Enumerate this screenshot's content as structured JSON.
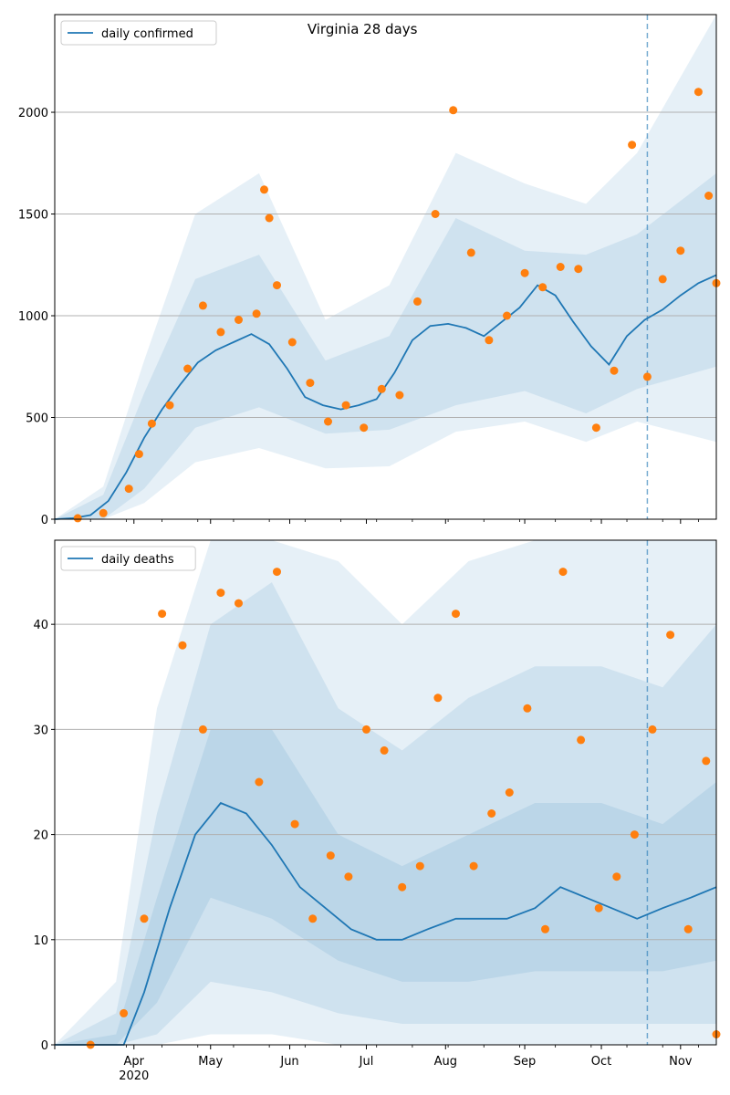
{
  "colors": {
    "line": "#1f77b4",
    "points": "#ff7f0e",
    "band": "#1f77b4",
    "grid": "#b0b0b0"
  },
  "chart_data": [
    {
      "type": "line",
      "title": "Virginia 28 days",
      "legend": {
        "label": "daily confirmed",
        "placement": "top-left"
      },
      "ylim": [
        0,
        2480
      ],
      "yticks": [
        0,
        500,
        1000,
        1500,
        2000
      ],
      "grid": "horizontal",
      "x_range": [
        "2020-03-01",
        "2020-11-15"
      ],
      "vline_date": "2020-10-19",
      "series": [
        {
          "kind": "line",
          "x": [
            "2020-03-01",
            "2020-03-08",
            "2020-03-15",
            "2020-03-22",
            "2020-03-29",
            "2020-04-05",
            "2020-04-12",
            "2020-04-19",
            "2020-04-26",
            "2020-05-03",
            "2020-05-10",
            "2020-05-17",
            "2020-05-24",
            "2020-05-31",
            "2020-06-07",
            "2020-06-14",
            "2020-06-21",
            "2020-06-28",
            "2020-07-05",
            "2020-07-12",
            "2020-07-19",
            "2020-07-26",
            "2020-08-02",
            "2020-08-09",
            "2020-08-16",
            "2020-08-23",
            "2020-08-30",
            "2020-09-06",
            "2020-09-13",
            "2020-09-20",
            "2020-09-27",
            "2020-10-04",
            "2020-10-11",
            "2020-10-18",
            "2020-10-25",
            "2020-11-01",
            "2020-11-08",
            "2020-11-15"
          ],
          "y": [
            0,
            5,
            20,
            90,
            230,
            400,
            540,
            660,
            770,
            830,
            870,
            910,
            860,
            740,
            600,
            560,
            540,
            560,
            590,
            720,
            880,
            950,
            960,
            940,
            900,
            970,
            1040,
            1150,
            1100,
            970,
            850,
            760,
            900,
            980,
            1030,
            1100,
            1160,
            1200
          ]
        },
        {
          "kind": "scatter",
          "x": [
            "2020-03-10",
            "2020-03-20",
            "2020-03-30",
            "2020-04-03",
            "2020-04-08",
            "2020-04-15",
            "2020-04-22",
            "2020-04-28",
            "2020-05-05",
            "2020-05-12",
            "2020-05-19",
            "2020-05-22",
            "2020-05-24",
            "2020-05-27",
            "2020-06-02",
            "2020-06-09",
            "2020-06-16",
            "2020-06-23",
            "2020-06-30",
            "2020-07-07",
            "2020-07-14",
            "2020-07-21",
            "2020-07-28",
            "2020-08-04",
            "2020-08-11",
            "2020-08-18",
            "2020-08-25",
            "2020-09-01",
            "2020-09-08",
            "2020-09-15",
            "2020-09-22",
            "2020-09-29",
            "2020-10-06",
            "2020-10-13",
            "2020-10-19",
            "2020-10-25",
            "2020-11-01",
            "2020-11-08",
            "2020-11-12",
            "2020-11-15"
          ],
          "y": [
            5,
            30,
            150,
            320,
            470,
            560,
            740,
            1050,
            920,
            980,
            1010,
            1620,
            1480,
            1150,
            870,
            670,
            480,
            560,
            450,
            640,
            610,
            1070,
            1500,
            2010,
            1310,
            880,
            1000,
            1210,
            1140,
            1240,
            1230,
            450,
            730,
            1840,
            700,
            1180,
            1320,
            2100,
            1590,
            1160
          ]
        }
      ],
      "bands": [
        {
          "x": [
            "2020-03-01",
            "2020-03-20",
            "2020-04-05",
            "2020-04-25",
            "2020-05-20",
            "2020-06-15",
            "2020-07-10",
            "2020-08-05",
            "2020-09-01",
            "2020-09-25",
            "2020-10-15",
            "2020-11-15"
          ],
          "low": [
            0,
            0,
            150,
            450,
            550,
            420,
            440,
            560,
            630,
            520,
            640,
            750
          ],
          "high": [
            0,
            120,
            620,
            1180,
            1300,
            780,
            900,
            1480,
            1320,
            1300,
            1400,
            1700
          ]
        },
        {
          "x": [
            "2020-03-01",
            "2020-03-20",
            "2020-04-05",
            "2020-04-25",
            "2020-05-20",
            "2020-06-15",
            "2020-07-10",
            "2020-08-05",
            "2020-09-01",
            "2020-09-25",
            "2020-10-15",
            "2020-11-15"
          ],
          "low": [
            0,
            0,
            80,
            280,
            350,
            250,
            260,
            430,
            480,
            380,
            480,
            380
          ],
          "high": [
            0,
            160,
            780,
            1500,
            1700,
            980,
            1150,
            1800,
            1650,
            1550,
            1800,
            2480
          ]
        }
      ]
    },
    {
      "type": "line",
      "title": "",
      "legend": {
        "label": "daily deaths",
        "placement": "top-left"
      },
      "ylim": [
        0,
        48
      ],
      "yticks": [
        0,
        10,
        20,
        30,
        40
      ],
      "grid": "horizontal",
      "x_range": [
        "2020-03-01",
        "2020-11-15"
      ],
      "vline_date": "2020-10-19",
      "xticks": [
        {
          "date": "2020-04-01",
          "label": "Apr",
          "sub": "2020"
        },
        {
          "date": "2020-05-01",
          "label": "May",
          "sub": ""
        },
        {
          "date": "2020-06-01",
          "label": "Jun",
          "sub": ""
        },
        {
          "date": "2020-07-01",
          "label": "Jul",
          "sub": ""
        },
        {
          "date": "2020-08-01",
          "label": "Aug",
          "sub": ""
        },
        {
          "date": "2020-09-01",
          "label": "Sep",
          "sub": ""
        },
        {
          "date": "2020-10-01",
          "label": "Oct",
          "sub": ""
        },
        {
          "date": "2020-11-01",
          "label": "Nov",
          "sub": ""
        }
      ],
      "series": [
        {
          "kind": "line",
          "x": [
            "2020-03-01",
            "2020-03-20",
            "2020-03-28",
            "2020-04-05",
            "2020-04-15",
            "2020-04-25",
            "2020-05-05",
            "2020-05-15",
            "2020-05-25",
            "2020-06-05",
            "2020-06-15",
            "2020-06-25",
            "2020-07-05",
            "2020-07-15",
            "2020-07-25",
            "2020-08-05",
            "2020-08-15",
            "2020-08-25",
            "2020-09-05",
            "2020-09-15",
            "2020-09-25",
            "2020-10-05",
            "2020-10-15",
            "2020-10-25",
            "2020-11-05",
            "2020-11-15"
          ],
          "y": [
            0,
            0,
            0,
            5,
            13,
            20,
            23,
            22,
            19,
            15,
            13,
            11,
            10,
            10,
            11,
            12,
            12,
            12,
            13,
            15,
            14,
            13,
            12,
            13,
            14,
            15
          ]
        },
        {
          "kind": "scatter",
          "x": [
            "2020-03-15",
            "2020-03-28",
            "2020-04-05",
            "2020-04-12",
            "2020-04-20",
            "2020-04-28",
            "2020-05-05",
            "2020-05-12",
            "2020-05-20",
            "2020-05-27",
            "2020-06-03",
            "2020-06-10",
            "2020-06-17",
            "2020-06-24",
            "2020-07-01",
            "2020-07-08",
            "2020-07-15",
            "2020-07-22",
            "2020-07-29",
            "2020-08-05",
            "2020-08-12",
            "2020-08-19",
            "2020-08-26",
            "2020-09-02",
            "2020-09-09",
            "2020-09-16",
            "2020-09-23",
            "2020-09-30",
            "2020-10-07",
            "2020-10-14",
            "2020-10-21",
            "2020-10-28",
            "2020-11-04",
            "2020-11-11",
            "2020-11-15"
          ],
          "y": [
            0,
            3,
            12,
            41,
            38,
            30,
            43,
            42,
            25,
            45,
            21,
            12,
            18,
            16,
            30,
            28,
            15,
            17,
            33,
            41,
            17,
            22,
            24,
            32,
            11,
            45,
            29,
            13,
            16,
            20,
            30,
            39,
            11,
            27,
            1
          ]
        }
      ],
      "bands": [
        {
          "x": [
            "2020-03-01",
            "2020-03-25",
            "2020-04-10",
            "2020-05-01",
            "2020-05-25",
            "2020-06-20",
            "2020-07-15",
            "2020-08-10",
            "2020-09-05",
            "2020-10-01",
            "2020-10-25",
            "2020-11-15"
          ],
          "low": [
            0,
            0,
            4,
            14,
            12,
            8,
            6,
            6,
            7,
            7,
            7,
            8
          ],
          "high": [
            0,
            1,
            14,
            30,
            30,
            20,
            17,
            20,
            23,
            23,
            21,
            25
          ]
        },
        {
          "x": [
            "2020-03-01",
            "2020-03-25",
            "2020-04-10",
            "2020-05-01",
            "2020-05-25",
            "2020-06-20",
            "2020-07-15",
            "2020-08-10",
            "2020-09-05",
            "2020-10-01",
            "2020-10-25",
            "2020-11-15"
          ],
          "low": [
            0,
            0,
            1,
            6,
            5,
            3,
            2,
            2,
            2,
            2,
            2,
            2
          ],
          "high": [
            0,
            3,
            22,
            40,
            44,
            32,
            28,
            33,
            36,
            36,
            34,
            40
          ]
        },
        {
          "x": [
            "2020-03-01",
            "2020-03-25",
            "2020-04-10",
            "2020-05-01",
            "2020-05-25",
            "2020-06-20",
            "2020-07-15",
            "2020-08-10",
            "2020-09-05",
            "2020-10-01",
            "2020-10-25",
            "2020-11-15"
          ],
          "low": [
            0,
            0,
            0,
            1,
            1,
            0,
            0,
            0,
            0,
            0,
            0,
            0
          ],
          "high": [
            0,
            6,
            32,
            48,
            48,
            46,
            40,
            46,
            48,
            48,
            48,
            48
          ]
        }
      ]
    }
  ]
}
